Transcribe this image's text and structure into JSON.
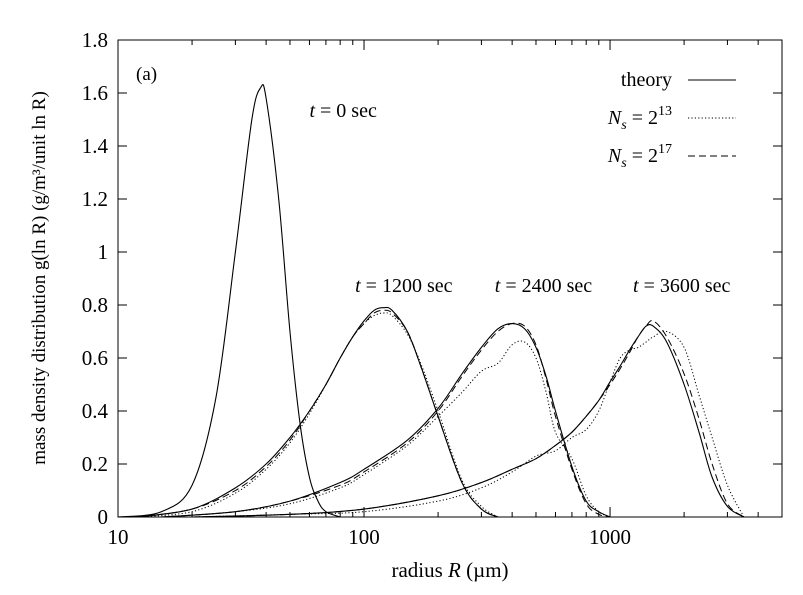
{
  "chart_data": {
    "type": "line",
    "panel_label": "(a)",
    "xlabel": {
      "prefix": "radius ",
      "var": "R",
      "suffix": " (µm)"
    },
    "ylabel": {
      "text": "mass density distribution g(ln R) (g/m³/unit ln R)"
    },
    "x_scale": "log",
    "xlim": [
      10,
      5000
    ],
    "ylim": [
      0,
      1.8
    ],
    "x_ticks": [
      10,
      100,
      1000
    ],
    "x_tick_labels": [
      "10",
      "100",
      "1000"
    ],
    "y_ticks": [
      0,
      0.2,
      0.4,
      0.6,
      0.8,
      1.0,
      1.2,
      1.4,
      1.6,
      1.8
    ],
    "y_tick_labels": [
      "0",
      "0.2",
      "0.4",
      "0.6",
      "0.8",
      "1",
      "1.2",
      "1.4",
      "1.6",
      "1.8"
    ],
    "grid": false,
    "legend": {
      "placement": "top-right",
      "entries": [
        {
          "label": "theory",
          "style": "solid"
        },
        {
          "label": "N_s = 2^13",
          "style": "dotted"
        },
        {
          "label": "N_s = 2^17",
          "style": "dashed"
        }
      ]
    },
    "annotations": [
      {
        "var": "t",
        "text": " = 0 sec",
        "x": 60,
        "y": 1.51
      },
      {
        "var": "t",
        "text": " = 1200 sec",
        "x": 92,
        "y": 0.85
      },
      {
        "var": "t",
        "text": " = 2400 sec",
        "x": 340,
        "y": 0.85
      },
      {
        "var": "t",
        "text": " = 3600 sec",
        "x": 1240,
        "y": 0.85
      }
    ],
    "series": [
      {
        "name": "theory",
        "style": "solid",
        "time": "0 sec",
        "x": [
          10,
          15,
          20,
          25,
          30,
          35,
          38,
          40,
          45,
          50,
          55,
          60,
          65,
          70,
          80
        ],
        "y": [
          0,
          0.02,
          0.12,
          0.45,
          1.0,
          1.5,
          1.62,
          1.58,
          1.2,
          0.7,
          0.35,
          0.15,
          0.06,
          0.02,
          0.0
        ]
      },
      {
        "name": "theory",
        "style": "solid",
        "time": "1200 sec",
        "x": [
          12,
          20,
          30,
          40,
          50,
          60,
          70,
          80,
          90,
          100,
          110,
          120,
          130,
          150,
          170,
          200,
          250,
          300,
          350
        ],
        "y": [
          0,
          0.03,
          0.11,
          0.2,
          0.3,
          0.4,
          0.5,
          0.6,
          0.68,
          0.74,
          0.78,
          0.79,
          0.78,
          0.7,
          0.57,
          0.38,
          0.13,
          0.03,
          0.0
        ]
      },
      {
        "name": "N_s = 2^13",
        "style": "dotted",
        "time": "1200 sec",
        "x": [
          12,
          20,
          30,
          40,
          50,
          60,
          70,
          80,
          90,
          100,
          110,
          120,
          130,
          150,
          170,
          200,
          250,
          300,
          350
        ],
        "y": [
          0,
          0.02,
          0.09,
          0.18,
          0.28,
          0.39,
          0.5,
          0.6,
          0.68,
          0.73,
          0.76,
          0.77,
          0.76,
          0.69,
          0.58,
          0.4,
          0.14,
          0.04,
          0.0
        ]
      },
      {
        "name": "N_s = 2^17",
        "style": "dashed",
        "time": "1200 sec",
        "x": [
          12,
          20,
          30,
          40,
          50,
          60,
          70,
          80,
          90,
          100,
          110,
          120,
          130,
          150,
          170,
          200,
          250,
          300,
          350
        ],
        "y": [
          0,
          0.03,
          0.1,
          0.19,
          0.29,
          0.4,
          0.5,
          0.6,
          0.68,
          0.73,
          0.77,
          0.78,
          0.77,
          0.7,
          0.57,
          0.38,
          0.13,
          0.03,
          0.0
        ]
      },
      {
        "name": "theory",
        "style": "solid",
        "time": "2400 sec",
        "x": [
          15,
          30,
          50,
          80,
          100,
          150,
          200,
          250,
          300,
          350,
          400,
          450,
          500,
          550,
          600,
          700,
          800,
          900,
          1000
        ],
        "y": [
          0,
          0.02,
          0.06,
          0.13,
          0.18,
          0.29,
          0.41,
          0.54,
          0.64,
          0.71,
          0.73,
          0.71,
          0.64,
          0.53,
          0.4,
          0.19,
          0.06,
          0.02,
          0.0
        ]
      },
      {
        "name": "N_s = 2^13",
        "style": "dotted",
        "time": "2400 sec",
        "x": [
          15,
          30,
          50,
          80,
          100,
          150,
          200,
          250,
          300,
          350,
          400,
          450,
          500,
          550,
          600,
          700,
          800,
          900,
          1000
        ],
        "y": [
          0,
          0.02,
          0.05,
          0.11,
          0.16,
          0.27,
          0.38,
          0.47,
          0.55,
          0.58,
          0.65,
          0.66,
          0.6,
          0.47,
          0.32,
          0.22,
          0.08,
          0.02,
          0.0
        ]
      },
      {
        "name": "N_s = 2^17",
        "style": "dashed",
        "time": "2400 sec",
        "x": [
          15,
          30,
          50,
          80,
          100,
          150,
          200,
          250,
          300,
          350,
          400,
          450,
          500,
          550,
          600,
          700,
          800,
          900,
          1000
        ],
        "y": [
          0,
          0.02,
          0.06,
          0.12,
          0.17,
          0.28,
          0.4,
          0.53,
          0.63,
          0.7,
          0.73,
          0.72,
          0.65,
          0.52,
          0.38,
          0.18,
          0.05,
          0.01,
          0.0
        ]
      },
      {
        "name": "theory",
        "style": "solid",
        "time": "3600 sec",
        "x": [
          20,
          50,
          100,
          200,
          300,
          400,
          500,
          600,
          700,
          800,
          900,
          1000,
          1100,
          1200,
          1300,
          1400,
          1500,
          1700,
          2000,
          2300,
          2600,
          3000,
          3500
        ],
        "y": [
          0,
          0.01,
          0.03,
          0.08,
          0.13,
          0.18,
          0.22,
          0.27,
          0.32,
          0.38,
          0.44,
          0.51,
          0.57,
          0.63,
          0.68,
          0.72,
          0.72,
          0.66,
          0.5,
          0.32,
          0.15,
          0.04,
          0.0
        ]
      },
      {
        "name": "N_s = 2^13",
        "style": "dotted",
        "time": "3600 sec",
        "x": [
          20,
          50,
          100,
          200,
          300,
          400,
          500,
          600,
          700,
          800,
          900,
          1000,
          1100,
          1200,
          1300,
          1400,
          1500,
          1700,
          2000,
          2300,
          2600,
          3000,
          3500
        ],
        "y": [
          0,
          0.01,
          0.02,
          0.06,
          0.11,
          0.17,
          0.23,
          0.25,
          0.3,
          0.33,
          0.4,
          0.51,
          0.6,
          0.63,
          0.64,
          0.66,
          0.68,
          0.7,
          0.64,
          0.46,
          0.3,
          0.12,
          0.0
        ]
      },
      {
        "name": "N_s = 2^17",
        "style": "dashed",
        "time": "3600 sec",
        "x": [
          20,
          50,
          100,
          200,
          300,
          400,
          500,
          600,
          700,
          800,
          900,
          1000,
          1100,
          1200,
          1300,
          1400,
          1500,
          1700,
          2000,
          2300,
          2600,
          3000,
          3500
        ],
        "y": [
          0,
          0.01,
          0.03,
          0.08,
          0.13,
          0.18,
          0.22,
          0.27,
          0.32,
          0.38,
          0.44,
          0.5,
          0.56,
          0.62,
          0.68,
          0.72,
          0.74,
          0.68,
          0.54,
          0.37,
          0.2,
          0.05,
          0.0
        ]
      }
    ]
  }
}
